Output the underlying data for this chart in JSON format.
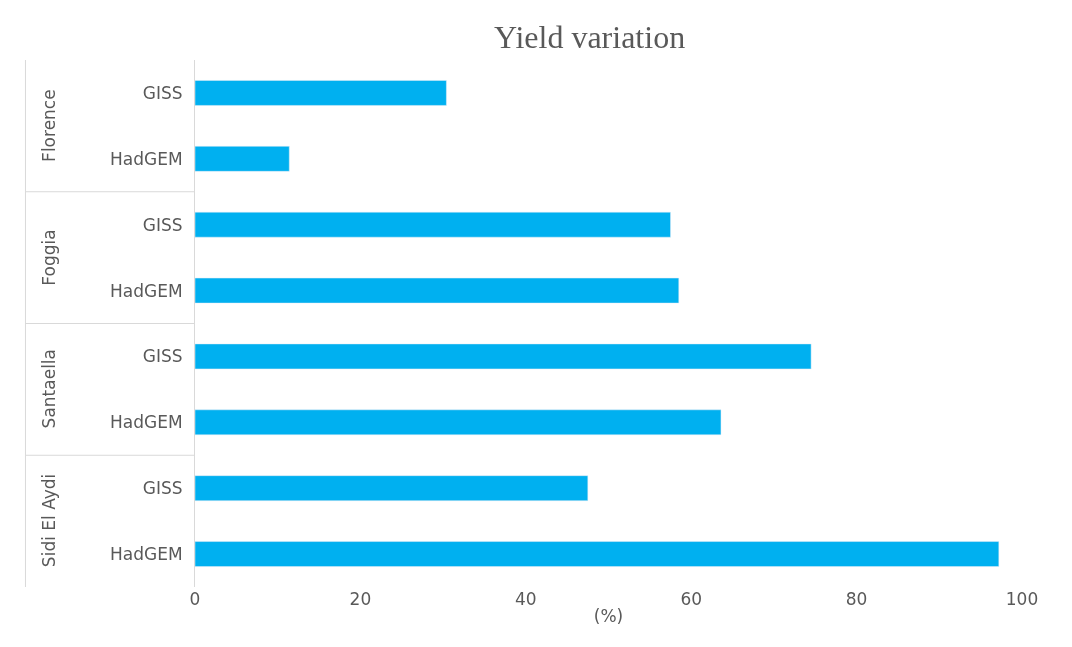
{
  "chart_data": {
    "type": "bar",
    "orientation": "horizontal",
    "title": "Yield variation",
    "xlabel": "(%)",
    "categories": [
      "GISS",
      "HadGEM",
      "GISS",
      "HadGEM",
      "GISS",
      "HadGEM",
      "GISS",
      "HadGEM"
    ],
    "values": [
      30.4,
      11.4,
      57.5,
      58.5,
      74.5,
      63.6,
      47.5,
      97.2
    ],
    "color": "#00b0f0",
    "annotations": [
      "Florence",
      "Foggia",
      "Santaella",
      "Sidi El Aydi"
    ],
    "xlim": [
      0,
      100
    ],
    "xticks": [
      0,
      20,
      40,
      60,
      80,
      100
    ]
  }
}
